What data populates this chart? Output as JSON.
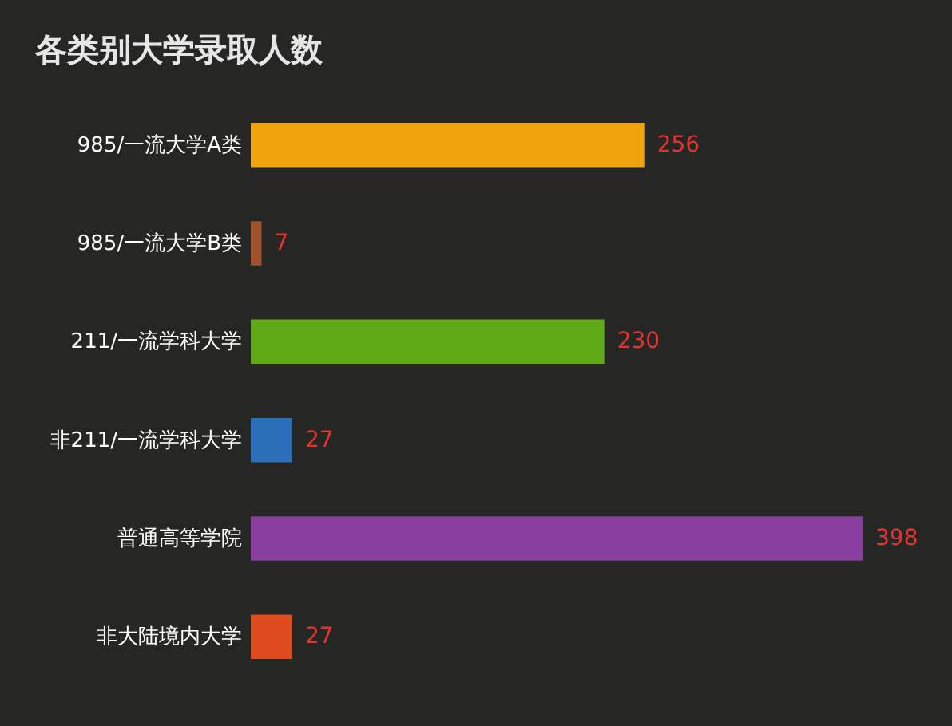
{
  "chart_data": {
    "type": "bar",
    "orientation": "horizontal",
    "title": "各类别大学录取人数",
    "categories": [
      "985/一流大学A类",
      "985/一流大学B类",
      "211/一流学科大学",
      "非211/一流学科大学",
      "普通高等学院",
      "非大陆境内大学"
    ],
    "values": [
      256,
      7,
      230,
      27,
      398,
      27
    ],
    "colors": [
      "#f0a30a",
      "#a0522d",
      "#60a917",
      "#2a6fb8",
      "#8a3ea0",
      "#e04a1f"
    ],
    "data_labels": true
  }
}
